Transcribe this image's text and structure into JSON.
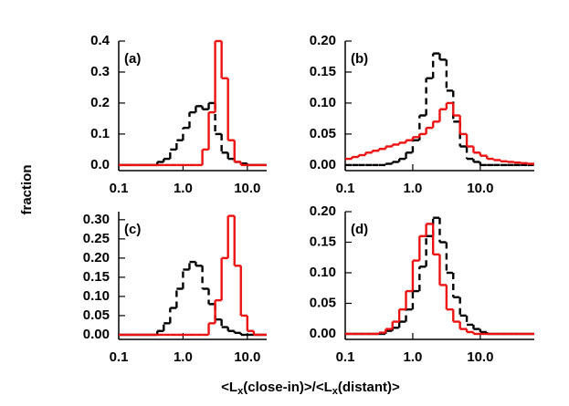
{
  "y_label": "fraction",
  "x_label_parts": [
    "<L",
    "x",
    "(close-in)>/<L",
    "x",
    "(distant)>"
  ],
  "chart_data": [
    {
      "type": "histogram",
      "panel_label": "(a)",
      "log_x": true,
      "xlim": [
        0.1,
        20
      ],
      "ylim": [
        -0.018,
        0.4
      ],
      "xticks": [
        0.1,
        {
          "value": 1,
          "label": "1.0"
        },
        {
          "value": 10,
          "label": "10.0"
        }
      ],
      "yticks": [
        {
          "value": 0,
          "label": "0.0"
        },
        0.1,
        0.2,
        0.3,
        0.4
      ],
      "bins": [
        0.1,
        0.126,
        0.158,
        0.2,
        0.251,
        0.316,
        0.398,
        0.501,
        0.631,
        0.794,
        1,
        1.26,
        1.58,
        2,
        2.51,
        3.16,
        3.98,
        5.01,
        6.31,
        7.94,
        10,
        12.6,
        15.8,
        20
      ],
      "series": [
        {
          "color": "#000000",
          "dashed": true,
          "values": [
            0,
            0,
            0,
            0,
            0,
            0,
            0.01,
            0.02,
            0.05,
            0.08,
            0.12,
            0.17,
            0.19,
            0.18,
            0.2,
            0.1,
            0.04,
            0.02,
            0.01,
            0.005,
            0,
            0,
            0
          ]
        },
        {
          "color": "#ee1111",
          "dashed": false,
          "values": [
            0,
            0,
            0,
            0,
            0,
            0,
            0,
            0,
            0,
            0,
            0,
            0,
            0,
            0.05,
            0.17,
            0.4,
            0.28,
            0.08,
            0.01,
            0,
            0,
            0,
            0
          ]
        }
      ]
    },
    {
      "type": "histogram",
      "panel_label": "(b)",
      "log_x": true,
      "xlim": [
        0.1,
        63.1
      ],
      "ylim": [
        -0.009,
        0.2
      ],
      "xticks": [
        0.1,
        {
          "value": 1,
          "label": "1.0"
        },
        {
          "value": 10,
          "label": "10.0"
        }
      ],
      "yticks": [
        {
          "value": 0,
          "label": "0.00"
        },
        0.05,
        {
          "value": 0.1,
          "label": "0.10"
        },
        0.15,
        {
          "value": 0.2,
          "label": "0.20"
        }
      ],
      "bins": [
        0.1,
        0.126,
        0.158,
        0.2,
        0.251,
        0.316,
        0.398,
        0.501,
        0.631,
        0.794,
        1,
        1.26,
        1.58,
        2,
        2.51,
        3.16,
        3.98,
        5.01,
        6.31,
        7.94,
        10,
        12.6,
        15.8,
        20,
        25.1,
        31.6,
        39.8,
        50.1,
        63.1
      ],
      "series": [
        {
          "color": "#000000",
          "dashed": true,
          "values": [
            0,
            0,
            0,
            0,
            0,
            0,
            0.002,
            0.005,
            0.01,
            0.02,
            0.04,
            0.08,
            0.14,
            0.18,
            0.17,
            0.12,
            0.07,
            0.03,
            0.01,
            0.005,
            0,
            0,
            0,
            0,
            0,
            0,
            0,
            0
          ]
        },
        {
          "color": "#ee1111",
          "dashed": false,
          "values": [
            0.01,
            0.013,
            0.016,
            0.02,
            0.023,
            0.026,
            0.03,
            0.033,
            0.036,
            0.04,
            0.045,
            0.05,
            0.06,
            0.07,
            0.09,
            0.1,
            0.08,
            0.05,
            0.03,
            0.02,
            0.015,
            0.01,
            0.008,
            0.006,
            0.005,
            0.004,
            0.003,
            0.002
          ]
        }
      ]
    },
    {
      "type": "histogram",
      "panel_label": "(c)",
      "log_x": true,
      "xlim": [
        0.1,
        20
      ],
      "ylim": [
        -0.012,
        0.321
      ],
      "xticks": [
        0.1,
        {
          "value": 1,
          "label": "1.0"
        },
        {
          "value": 10,
          "label": "10.0"
        }
      ],
      "yticks": [
        {
          "value": 0,
          "label": "0.00"
        },
        0.05,
        {
          "value": 0.1,
          "label": "0.10"
        },
        0.15,
        {
          "value": 0.2,
          "label": "0.20"
        },
        0.25,
        {
          "value": 0.3,
          "label": "0.30"
        }
      ],
      "bins": [
        0.1,
        0.126,
        0.158,
        0.2,
        0.251,
        0.316,
        0.398,
        0.501,
        0.631,
        0.794,
        1,
        1.26,
        1.58,
        2,
        2.51,
        3.16,
        3.98,
        5.01,
        6.31,
        7.94,
        10,
        12.6,
        15.8,
        20
      ],
      "series": [
        {
          "color": "#000000",
          "dashed": true,
          "values": [
            0,
            0,
            0,
            0,
            0,
            0,
            0.01,
            0.03,
            0.07,
            0.12,
            0.17,
            0.19,
            0.18,
            0.12,
            0.08,
            0.04,
            0.02,
            0.01,
            0.005,
            0,
            0,
            0,
            0
          ]
        },
        {
          "color": "#ee1111",
          "dashed": false,
          "values": [
            0,
            0,
            0,
            0,
            0,
            0,
            0,
            0,
            0,
            0,
            0,
            0,
            0,
            0,
            0.03,
            0.09,
            0.2,
            0.31,
            0.18,
            0.05,
            0.01,
            0,
            0
          ]
        }
      ]
    },
    {
      "type": "histogram",
      "panel_label": "(d)",
      "log_x": true,
      "xlim": [
        0.1,
        63.1
      ],
      "ylim": [
        -0.009,
        0.2
      ],
      "xticks": [
        0.1,
        {
          "value": 1,
          "label": "1.0"
        },
        {
          "value": 10,
          "label": "10.0"
        }
      ],
      "yticks": [
        {
          "value": 0,
          "label": "0.00"
        },
        0.05,
        {
          "value": 0.1,
          "label": "0.10"
        },
        0.15,
        {
          "value": 0.2,
          "label": "0.20"
        }
      ],
      "bins": [
        0.1,
        0.126,
        0.158,
        0.2,
        0.251,
        0.316,
        0.398,
        0.501,
        0.631,
        0.794,
        1,
        1.26,
        1.58,
        2,
        2.51,
        3.16,
        3.98,
        5.01,
        6.31,
        7.94,
        10,
        12.6,
        15.8,
        20,
        25.1,
        31.6,
        39.8,
        50.1,
        63.1
      ],
      "series": [
        {
          "color": "#000000",
          "dashed": true,
          "values": [
            0,
            0,
            0,
            0,
            0,
            0,
            0.005,
            0.01,
            0.02,
            0.04,
            0.07,
            0.11,
            0.16,
            0.19,
            0.15,
            0.1,
            0.06,
            0.03,
            0.015,
            0.008,
            0.003,
            0,
            0,
            0,
            0,
            0,
            0,
            0
          ]
        },
        {
          "color": "#ee1111",
          "dashed": false,
          "values": [
            0,
            0,
            0,
            0,
            0,
            0.002,
            0.008,
            0.02,
            0.04,
            0.07,
            0.12,
            0.16,
            0.18,
            0.13,
            0.08,
            0.04,
            0.02,
            0.008,
            0.003,
            0,
            0,
            0,
            0,
            0,
            0,
            0,
            0,
            0
          ]
        }
      ]
    }
  ]
}
